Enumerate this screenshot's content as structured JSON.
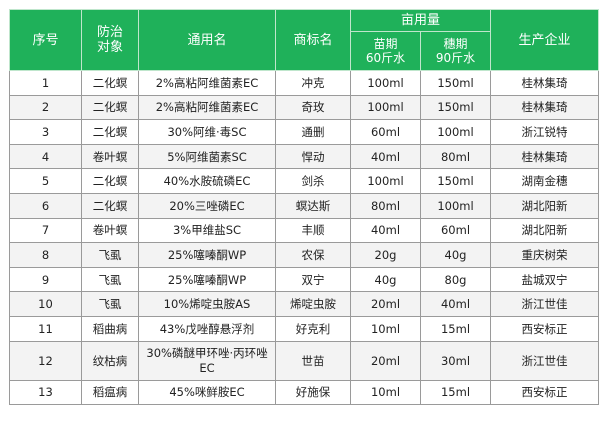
{
  "headers": {
    "seq": "序号",
    "target_l1": "防治",
    "target_l2": "对象",
    "generic": "通用名",
    "brand": "商标名",
    "dosage": "亩用量",
    "seedling_l1": "苗期",
    "seedling_l2": "60斤水",
    "heading_l1": "穗期",
    "heading_l2": "90斤水",
    "maker": "生产企业"
  },
  "rows": [
    {
      "no": "1",
      "target": "二化螟",
      "generic": "2%高粘阿维菌素EC",
      "brand": "冲克",
      "seedling": "100ml",
      "heading": "150ml",
      "maker": "桂林集琦"
    },
    {
      "no": "2",
      "target": "二化螟",
      "generic": "2%高粘阿维菌素EC",
      "brand": "奇玫",
      "seedling": "100ml",
      "heading": "150ml",
      "maker": "桂林集琦"
    },
    {
      "no": "3",
      "target": "二化螟",
      "generic": "30%阿维·毒SC",
      "brand": "通删",
      "seedling": "60ml",
      "heading": "100ml",
      "maker": "浙江锐特"
    },
    {
      "no": "4",
      "target": "卷叶螟",
      "generic": "5%阿维菌素SC",
      "brand": "悍动",
      "seedling": "40ml",
      "heading": "80ml",
      "maker": "桂林集琦"
    },
    {
      "no": "5",
      "target": "二化螟",
      "generic": "40%水胺硫磷EC",
      "brand": "剑杀",
      "seedling": "100ml",
      "heading": "150ml",
      "maker": "湖南金穗"
    },
    {
      "no": "6",
      "target": "二化螟",
      "generic": "20%三唑磷EC",
      "brand": "螟达斯",
      "seedling": "80ml",
      "heading": "100ml",
      "maker": "湖北阳新"
    },
    {
      "no": "7",
      "target": "卷叶螟",
      "generic": "3%甲维盐SC",
      "brand": "丰顺",
      "seedling": "40ml",
      "heading": "60ml",
      "maker": "湖北阳新"
    },
    {
      "no": "8",
      "target": "飞虱",
      "generic": "25%噻嗪酮WP",
      "brand": "农保",
      "seedling": "20g",
      "heading": "40g",
      "maker": "重庆树荣"
    },
    {
      "no": "9",
      "target": "飞虱",
      "generic": "25%噻嗪酮WP",
      "brand": "双宁",
      "seedling": "40g",
      "heading": "80g",
      "maker": "盐城双宁"
    },
    {
      "no": "10",
      "target": "飞虱",
      "generic": "10%烯啶虫胺AS",
      "brand": "烯啶虫胺",
      "seedling": "20ml",
      "heading": "40ml",
      "maker": "浙江世佳"
    },
    {
      "no": "11",
      "target": "稻曲病",
      "generic": "43%戊唑醇悬浮剂",
      "brand": "好克利",
      "seedling": "10ml",
      "heading": "15ml",
      "maker": "西安标正"
    },
    {
      "no": "12",
      "target": "纹枯病",
      "generic": "30%磷醚甲环唑·丙环唑EC",
      "brand": "世苗",
      "seedling": "20ml",
      "heading": "30ml",
      "maker": "浙江世佳"
    },
    {
      "no": "13",
      "target": "稻瘟病",
      "generic": "45%咪鲜胺EC",
      "brand": "好施保",
      "seedling": "10ml",
      "heading": "15ml",
      "maker": "西安标正"
    }
  ],
  "colors": {
    "header_bg": "#1fb15a",
    "header_text": "#ffffff",
    "border": "#9a9a9a",
    "stripe": "#f3f3f3"
  }
}
